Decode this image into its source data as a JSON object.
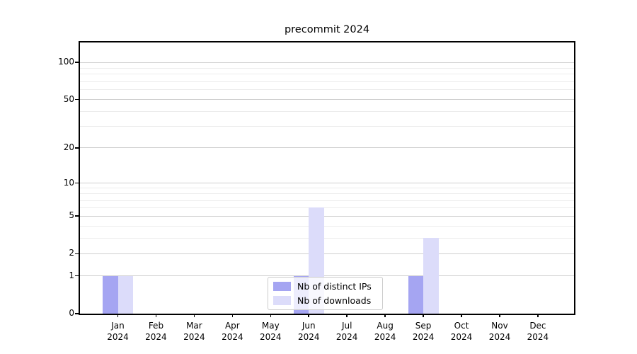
{
  "figure": {
    "title": "precommit 2024"
  },
  "chart_data": {
    "type": "bar",
    "title": "precommit 2024",
    "categories": [
      {
        "month": "Jan",
        "year": "2024"
      },
      {
        "month": "Feb",
        "year": "2024"
      },
      {
        "month": "Mar",
        "year": "2024"
      },
      {
        "month": "Apr",
        "year": "2024"
      },
      {
        "month": "May",
        "year": "2024"
      },
      {
        "month": "Jun",
        "year": "2024"
      },
      {
        "month": "Jul",
        "year": "2024"
      },
      {
        "month": "Aug",
        "year": "2024"
      },
      {
        "month": "Sep",
        "year": "2024"
      },
      {
        "month": "Oct",
        "year": "2024"
      },
      {
        "month": "Nov",
        "year": "2024"
      },
      {
        "month": "Dec",
        "year": "2024"
      }
    ],
    "series": [
      {
        "name": "Nb of distinct IPs",
        "color": "#a5a5f2",
        "values": [
          1,
          0,
          0,
          0,
          0,
          1,
          0,
          0,
          1,
          0,
          0,
          0
        ]
      },
      {
        "name": "Nb of downloads",
        "color": "#dcdcfa",
        "values": [
          1,
          0,
          0,
          0,
          0,
          6,
          0,
          0,
          3,
          0,
          0,
          0
        ]
      }
    ],
    "xlabel": "",
    "ylabel": "",
    "yscale": "log1p",
    "ylim": [
      0,
      114
    ],
    "y_major_ticks": [
      0,
      1,
      2,
      5,
      10,
      20,
      50,
      100
    ],
    "y_minor_gridlines": [
      3,
      4,
      6,
      7,
      8,
      9,
      30,
      40,
      60,
      70,
      80,
      90
    ],
    "grid": "horizontal",
    "legend_position": "lower center"
  },
  "colors": {
    "spine": "#000000",
    "major_grid": "#cfcfcf",
    "minor_grid": "#ececec",
    "legend_border": "#cccccc"
  }
}
